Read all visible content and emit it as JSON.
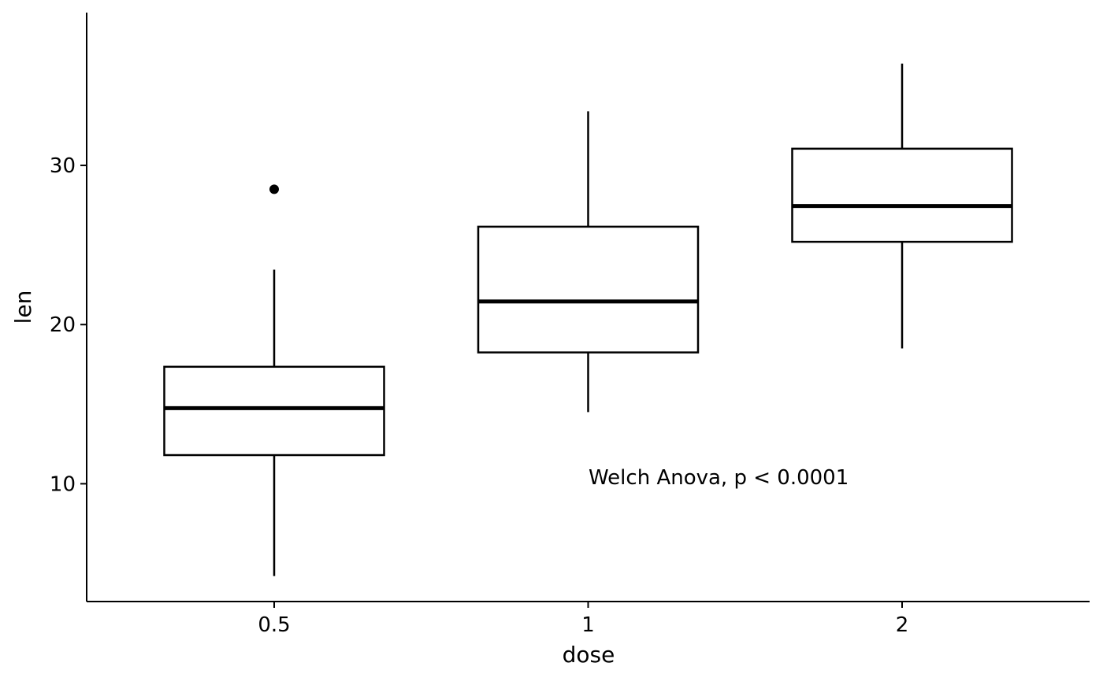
{
  "chart_data": {
    "type": "boxplot",
    "xlabel": "dose",
    "ylabel": "len",
    "categories": [
      "0.5",
      "1",
      "2"
    ],
    "boxes": [
      {
        "category": "0.5",
        "lower_whisker": 4.2,
        "q1": 11.8,
        "median": 14.75,
        "q3": 17.35,
        "upper_whisker": 23.45,
        "outliers": [
          28.5
        ]
      },
      {
        "category": "1",
        "lower_whisker": 14.5,
        "q1": 18.25,
        "median": 21.45,
        "q3": 26.15,
        "upper_whisker": 33.4,
        "outliers": []
      },
      {
        "category": "2",
        "lower_whisker": 18.5,
        "q1": 25.2,
        "median": 27.45,
        "q3": 31.05,
        "upper_whisker": 36.4,
        "outliers": []
      }
    ],
    "yticks": [
      10,
      20,
      30
    ],
    "ylim": [
      2.6,
      39.6
    ],
    "grid": false,
    "annotation": "Welch Anova, p < 0.0001",
    "colors": {
      "box_fill": "#ffffff",
      "stroke": "#000000"
    }
  }
}
